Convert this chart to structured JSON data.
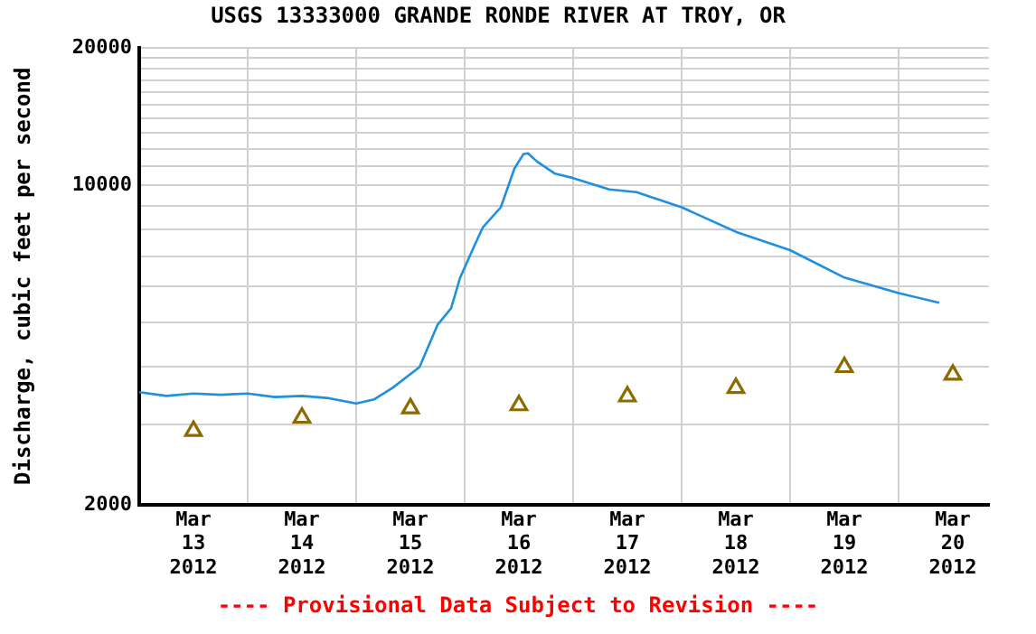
{
  "chart_data": {
    "type": "line",
    "title": "USGS 13333000 GRANDE RONDE RIVER AT TROY, OR",
    "ylabel": "Discharge, cubic feet per second",
    "annotations": [
      "---- Provisional Data Subject to Revision ----"
    ],
    "log": "y",
    "grid": true,
    "xlim": [
      "2012-03-13T00:00",
      "2012-03-20T20:00"
    ],
    "xticks": [
      {
        "value": "2012-03-13T00:00",
        "label": null
      },
      {
        "value": "2012-03-13T12:00",
        "label": "Mar\n13\n2012"
      },
      {
        "value": "2012-03-14T00:00",
        "label": null
      },
      {
        "value": "2012-03-14T12:00",
        "label": "Mar\n14\n2012"
      },
      {
        "value": "2012-03-15T00:00",
        "label": null
      },
      {
        "value": "2012-03-15T12:00",
        "label": "Mar\n15\n2012"
      },
      {
        "value": "2012-03-16T00:00",
        "label": null
      },
      {
        "value": "2012-03-16T12:00",
        "label": "Mar\n16\n2012"
      },
      {
        "value": "2012-03-17T00:00",
        "label": null
      },
      {
        "value": "2012-03-17T12:00",
        "label": "Mar\n17\n2012"
      },
      {
        "value": "2012-03-18T00:00",
        "label": null
      },
      {
        "value": "2012-03-18T12:00",
        "label": "Mar\n18\n2012"
      },
      {
        "value": "2012-03-19T00:00",
        "label": null
      },
      {
        "value": "2012-03-19T12:00",
        "label": "Mar\n19\n2012"
      },
      {
        "value": "2012-03-20T00:00",
        "label": null
      },
      {
        "value": "2012-03-20T12:00",
        "label": "Mar\n20\n2012"
      }
    ],
    "ylim": [
      2000,
      20000
    ],
    "yticks": [
      2000,
      {
        "value": 3000,
        "label": null
      },
      {
        "value": 4000,
        "label": null
      },
      {
        "value": 5000,
        "label": null
      },
      {
        "value": 6000,
        "label": null
      },
      {
        "value": 7000,
        "label": null
      },
      {
        "value": 8000,
        "label": null
      },
      {
        "value": 9000,
        "label": null
      },
      10000,
      {
        "value": 11000,
        "label": null
      },
      {
        "value": 12000,
        "label": null
      },
      {
        "value": 13000,
        "label": null
      },
      {
        "value": 14000,
        "label": null
      },
      {
        "value": 15000,
        "label": null
      },
      {
        "value": 16000,
        "label": null
      },
      {
        "value": 17000,
        "label": null
      },
      {
        "value": 18000,
        "label": null
      },
      {
        "value": 19000,
        "label": null
      },
      20000
    ],
    "series": [
      {
        "marker": "none",
        "color": "#1f8fe0",
        "x": [
          "2012-03-13T00:00",
          "2012-03-13T06:00",
          "2012-03-13T12:00",
          "2012-03-13T18:00",
          "2012-03-14T00:00",
          "2012-03-14T06:00",
          "2012-03-14T12:00",
          "2012-03-14T18:00",
          "2012-03-15T00:00",
          "2012-03-15T04:00",
          "2012-03-15T08:00",
          "2012-03-15T14:00",
          "2012-03-15T18:00",
          "2012-03-15T21:00",
          "2012-03-15T23:00",
          "2012-03-16T02:00",
          "2012-03-16T04:00",
          "2012-03-16T08:00",
          "2012-03-16T11:00",
          "2012-03-16T13:00",
          "2012-03-16T14:00",
          "2012-03-16T16:00",
          "2012-03-16T20:00",
          "2012-03-17T00:00",
          "2012-03-17T08:00",
          "2012-03-17T14:00",
          "2012-03-18T00:00",
          "2012-03-18T12:00",
          "2012-03-19T00:00",
          "2012-03-19T12:00",
          "2012-03-20T00:00",
          "2012-03-20T09:00"
        ],
        "values": [
          3525,
          3460,
          3500,
          3480,
          3500,
          3440,
          3460,
          3420,
          3330,
          3400,
          3600,
          4000,
          4950,
          5380,
          6280,
          7320,
          8080,
          8950,
          10870,
          11700,
          11750,
          11270,
          10600,
          10370,
          9790,
          9660,
          8950,
          7910,
          7210,
          6280,
          5810,
          5530
        ]
      },
      {
        "type": "scatter",
        "marker": "triangle",
        "color": "#8b6a00",
        "x": [
          "2012-03-13T12:00",
          "2012-03-14T12:00",
          "2012-03-15T12:00",
          "2012-03-16T12:00",
          "2012-03-17T12:00",
          "2012-03-18T12:00",
          "2012-03-19T12:00",
          "2012-03-20T12:00"
        ],
        "values": [
          2900,
          3100,
          3250,
          3300,
          3450,
          3600,
          4000,
          3850
        ]
      }
    ]
  }
}
